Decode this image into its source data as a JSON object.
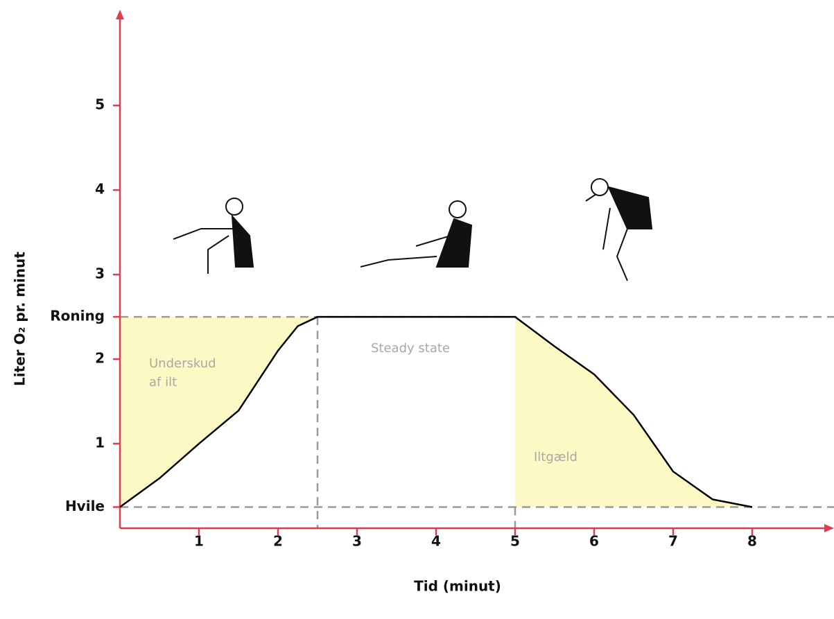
{
  "chart_data": {
    "type": "line",
    "x_label": "Tid (minut)",
    "y_label": "Liter O₂ pr. minut",
    "x": [
      0,
      0.5,
      1,
      1.5,
      2,
      2.25,
      2.5,
      3,
      4,
      5,
      5.5,
      6,
      6.5,
      7,
      7.5,
      8
    ],
    "values": [
      0.25,
      0.59,
      1.0,
      1.39,
      2.1,
      2.39,
      2.5,
      2.5,
      2.5,
      2.5,
      2.15,
      1.82,
      1.34,
      0.67,
      0.34,
      0.25
    ],
    "color": "#000000",
    "fill_color": "#fdf9c4",
    "axis_color": "#e03c4c",
    "xlim": [
      0,
      9
    ],
    "ylim": [
      0,
      6.1
    ],
    "xticks": [
      1,
      2,
      3,
      4,
      5,
      6,
      7,
      8
    ],
    "yticks": [
      {
        "value": 0.25,
        "label": "Hvile"
      },
      1,
      2,
      {
        "value": 2.5,
        "label": "Roning"
      },
      3,
      4,
      5
    ],
    "annotations": [
      "Underskud",
      "af ilt",
      "Steady state",
      "Iltgæld"
    ]
  }
}
